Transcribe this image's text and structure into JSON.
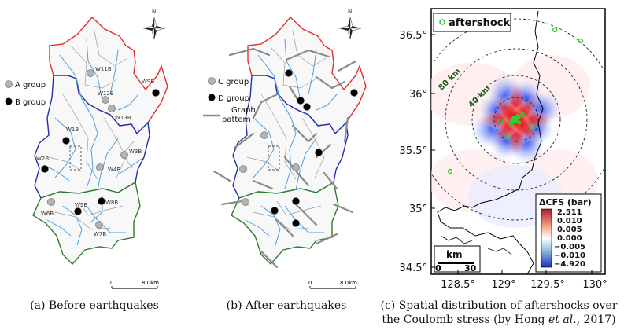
{
  "panel_a": {
    "caption": "(a) Before earthquakes",
    "legend": [
      {
        "label": "A group",
        "color": "#b3b3b3"
      },
      {
        "label": "B group",
        "color": "#000000"
      }
    ],
    "wells": [
      "W11B",
      "W9B",
      "W12B",
      "W13B",
      "W1B",
      "W3B",
      "W2B",
      "W4B",
      "W6B",
      "W5B",
      "W8B",
      "W7B"
    ],
    "scale_zero": "0",
    "scale_end": "8.0km",
    "north": "N"
  },
  "panel_b": {
    "caption": "(b) After earthquakes",
    "legend": [
      {
        "label": "C group",
        "color": "#b3b3b3"
      },
      {
        "label": "D group",
        "color": "#000000"
      },
      {
        "label": "Graph pattern",
        "label_line1": "Graph",
        "label_line2": "pattern",
        "color": "#888888"
      }
    ],
    "scale_zero": "0",
    "scale_end": "8.0km",
    "north": "N"
  },
  "panel_c": {
    "caption_line1": "(c) Spatial distribution of aftershocks over",
    "caption_line2_pre": "the Coulomb stress (by Hong ",
    "caption_line2_em": "et al",
    "caption_line2_post": "., 2017)",
    "legend_label": "aftershock",
    "ring_labels": [
      "80 km",
      "40 km"
    ],
    "y_ticks": [
      "36.5°",
      "36°",
      "35.5°",
      "35°",
      "34.5°"
    ],
    "x_ticks": [
      "128.5°",
      "129°",
      "129.5°",
      "130°"
    ],
    "colorbar": {
      "title": "ΔCFS (bar)",
      "labels": [
        "2.511",
        "0.010",
        "0.005",
        "0.000",
        "−0.005",
        "−0.010",
        "−4.920"
      ],
      "color_pos": "#d7191c",
      "color_neg": "#1f3fd1"
    },
    "scalebar": {
      "title": "km",
      "zero": "0",
      "end": "30"
    },
    "aftershock_color": "#33cc33"
  }
}
